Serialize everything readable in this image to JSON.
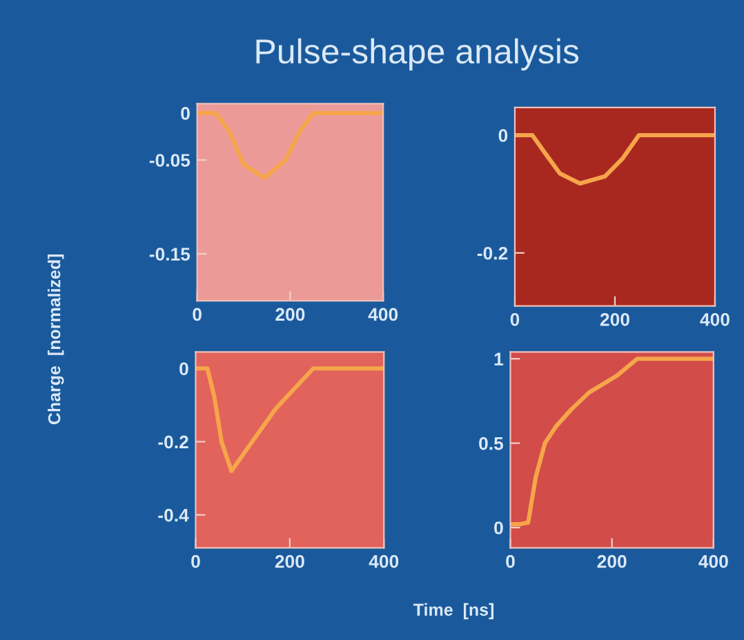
{
  "chart_data": [
    {
      "type": "line",
      "title": "Pulse-shape analysis",
      "ylabel": "Charge  [normalized]",
      "x": [
        0,
        40,
        70,
        100,
        145,
        190,
        220,
        250,
        400
      ],
      "series": [
        {
          "color": "#f6a54a",
          "values": [
            0,
            0,
            -0.02,
            -0.055,
            -0.069,
            -0.05,
            -0.02,
            0,
            0
          ]
        }
      ],
      "xlim": [
        0,
        400
      ],
      "xticks": [
        0,
        200,
        400
      ],
      "ylim": [
        -0.2,
        0.01
      ],
      "yticks": [
        0,
        -0.05,
        -0.15
      ],
      "grid": false,
      "legend": false
    },
    {
      "type": "line",
      "x": [
        0,
        35,
        60,
        90,
        130,
        180,
        215,
        248,
        400
      ],
      "series": [
        {
          "color": "#f6a54a",
          "values": [
            0,
            0,
            -0.03,
            -0.065,
            -0.082,
            -0.07,
            -0.04,
            0,
            0
          ]
        }
      ],
      "xlim": [
        0,
        400
      ],
      "xticks": [
        0,
        200,
        400
      ],
      "ylim": [
        -0.29,
        0.047
      ],
      "yticks": [
        0,
        -0.2
      ],
      "grid": false,
      "legend": false
    },
    {
      "type": "line",
      "x": [
        0,
        25,
        40,
        55,
        76,
        120,
        170,
        250,
        400
      ],
      "series": [
        {
          "color": "#f6a54a",
          "values": [
            0,
            0,
            -0.08,
            -0.2,
            -0.28,
            -0.2,
            -0.11,
            0,
            0
          ]
        }
      ],
      "xlim": [
        0,
        400
      ],
      "xticks": [
        0,
        200,
        400
      ],
      "ylim": [
        -0.49,
        0.045
      ],
      "yticks": [
        0,
        -0.2,
        -0.4
      ],
      "grid": false,
      "legend": false
    },
    {
      "type": "line",
      "xlabel": "Time  [ns]",
      "x": [
        0,
        20,
        35,
        50,
        68,
        90,
        120,
        155,
        210,
        250,
        400
      ],
      "series": [
        {
          "color": "#f6a54a",
          "values": [
            0.02,
            0.02,
            0.03,
            0.3,
            0.5,
            0.6,
            0.7,
            0.8,
            0.9,
            1,
            1
          ]
        }
      ],
      "xlim": [
        0,
        400
      ],
      "xticks": [
        0,
        200,
        400
      ],
      "ylim": [
        -0.12,
        1.04
      ],
      "yticks": [
        0,
        0.5,
        1
      ],
      "grid": false,
      "legend": false
    }
  ]
}
